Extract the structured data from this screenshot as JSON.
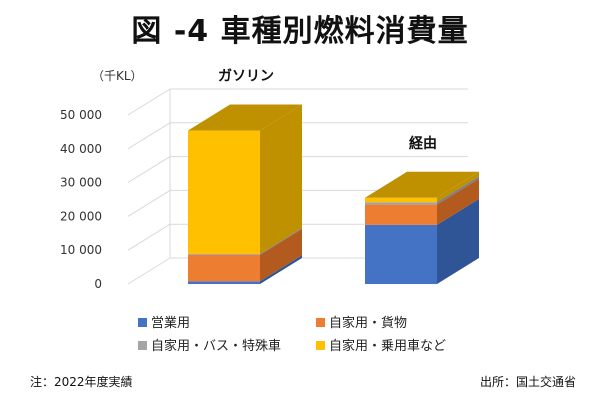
{
  "chart_data": {
    "type": "bar",
    "stacked": true,
    "three_d": true,
    "title": "図 -4 車種別燃料消費量",
    "unit_label": "（千KL）",
    "categories": [
      "ガソリン",
      "経由"
    ],
    "ylim": [
      0,
      50000
    ],
    "yticks": [
      0,
      10000,
      20000,
      30000,
      40000,
      50000
    ],
    "ytick_labels": [
      "0",
      "10 000",
      "20 000",
      "30 000",
      "40 000",
      "50 000"
    ],
    "grid": true,
    "legend_position": "bottom",
    "series": [
      {
        "name": "営業用",
        "color": "#4472C4",
        "side": "#2F5597",
        "values": [
          800,
          17500
        ]
      },
      {
        "name": "自家用・貨物",
        "color": "#ED7D31",
        "side": "#B35A1F",
        "values": [
          7800,
          6000
        ]
      },
      {
        "name": "自家用・バス・特殊車",
        "color": "#A5A5A5",
        "side": "#7F7F7F",
        "values": [
          300,
          700
        ]
      },
      {
        "name": "自家用・乗用車など",
        "color": "#FFC000",
        "side": "#BF9000",
        "values": [
          36500,
          1300
        ]
      }
    ]
  },
  "footer": {
    "note": "注：2022年度実績",
    "source": "出所：国土交通省"
  }
}
